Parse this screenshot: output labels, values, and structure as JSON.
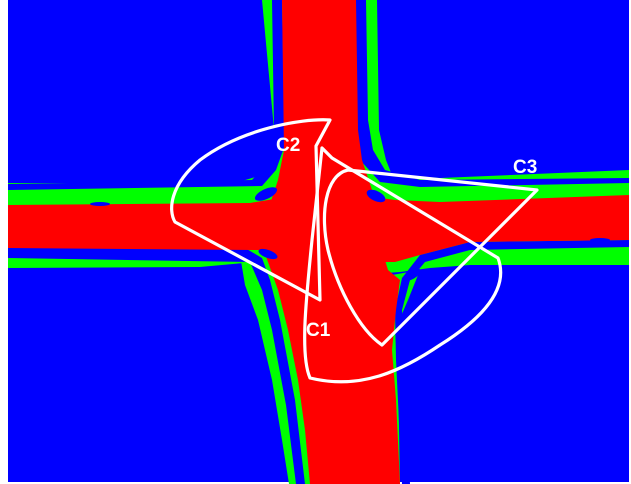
{
  "map": {
    "colors": {
      "background": "#0000ff",
      "sidewalk": "#00ff00",
      "road": "#ff0000",
      "outline": "#ffffff"
    }
  },
  "cameras": [
    {
      "id": "cam1",
      "label": "C1"
    },
    {
      "id": "cam2",
      "label": "C2"
    },
    {
      "id": "cam3",
      "label": "C3"
    }
  ]
}
